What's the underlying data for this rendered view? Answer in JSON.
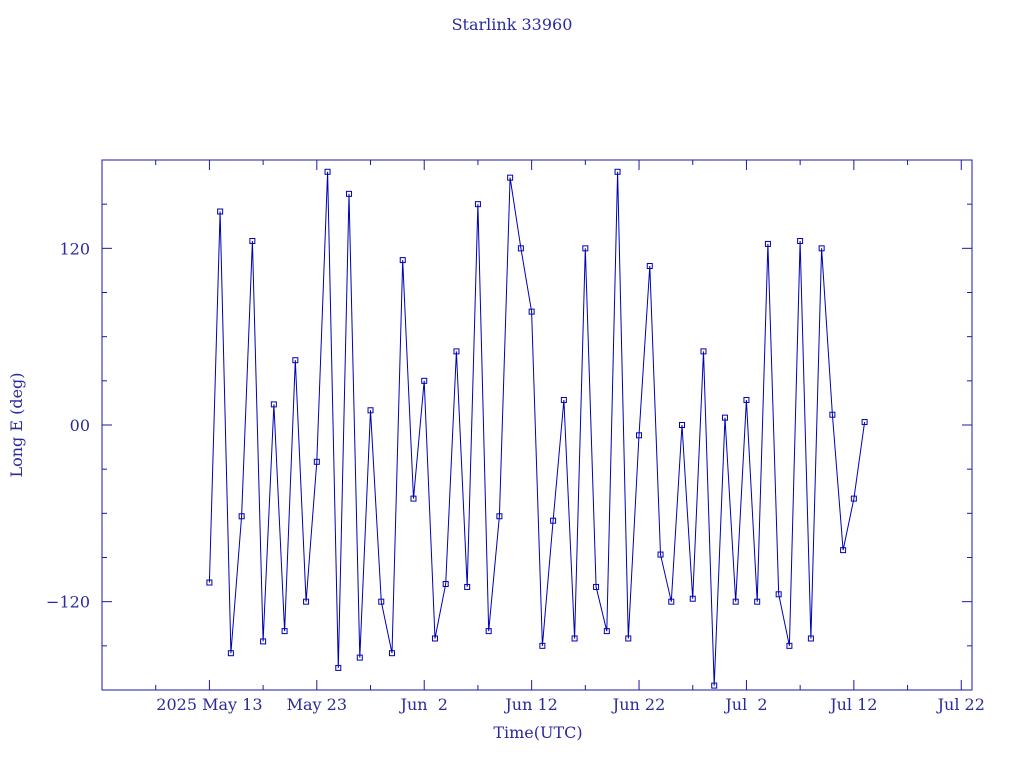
{
  "chart_data": {
    "type": "line",
    "title": "Starlink 33960",
    "x_label": "Time(UTC)",
    "y_label": "Long E (deg)",
    "color": "#0000b4",
    "markers": true,
    "xlim": [
      "2025-05-03",
      "2025-07-23"
    ],
    "xticks": [
      {
        "value": "2025-05-13",
        "label": "2025 May 13"
      },
      {
        "value": "2025-05-23",
        "label": "May 23"
      },
      {
        "value": "2025-06-02",
        "label": "Jun  2"
      },
      {
        "value": "2025-06-12",
        "label": "Jun 12"
      },
      {
        "value": "2025-06-22",
        "label": "Jun 22"
      },
      {
        "value": "2025-07-02",
        "label": "Jul  2"
      },
      {
        "value": "2025-07-12",
        "label": "Jul 12"
      },
      {
        "value": "2025-07-22",
        "label": "Jul 22"
      }
    ],
    "xminor": [
      "2025-05-08",
      "2025-05-18",
      "2025-05-28",
      "2025-06-07",
      "2025-06-17",
      "2025-06-27",
      "2025-07-07",
      "2025-07-17"
    ],
    "ylim": [
      -180,
      180
    ],
    "yticks": [
      {
        "value": -120,
        "label": "−120"
      },
      {
        "value": 0,
        "label": "00"
      },
      120
    ],
    "yminor": [
      -150,
      -90,
      -60,
      -30,
      30,
      60,
      90,
      150
    ],
    "x": [
      "2025-05-13",
      "2025-05-14",
      "2025-05-15",
      "2025-05-16",
      "2025-05-17",
      "2025-05-18",
      "2025-05-19",
      "2025-05-20",
      "2025-05-21",
      "2025-05-22",
      "2025-05-23",
      "2025-05-24",
      "2025-05-25",
      "2025-05-26",
      "2025-05-27",
      "2025-05-28",
      "2025-05-29",
      "2025-05-30",
      "2025-05-31",
      "2025-06-01",
      "2025-06-02",
      "2025-06-03",
      "2025-06-04",
      "2025-06-05",
      "2025-06-06",
      "2025-06-07",
      "2025-06-08",
      "2025-06-09",
      "2025-06-10",
      "2025-06-11",
      "2025-06-12",
      "2025-06-13",
      "2025-06-14",
      "2025-06-15",
      "2025-06-16",
      "2025-06-17",
      "2025-06-18",
      "2025-06-19",
      "2025-06-20",
      "2025-06-21",
      "2025-06-22",
      "2025-06-23",
      "2025-06-24",
      "2025-06-25",
      "2025-06-26",
      "2025-06-27",
      "2025-06-28",
      "2025-06-29",
      "2025-06-30",
      "2025-07-01",
      "2025-07-02",
      "2025-07-03",
      "2025-07-04",
      "2025-07-05",
      "2025-07-06",
      "2025-07-07",
      "2025-07-08",
      "2025-07-09",
      "2025-07-10",
      "2025-07-11",
      "2025-07-12",
      "2025-07-13"
    ],
    "values": [
      -107,
      145,
      -155,
      -62,
      125,
      -147,
      14,
      -140,
      44,
      -120,
      -25,
      172,
      -165,
      157,
      -158,
      10,
      -120,
      -155,
      112,
      -50,
      30,
      -145,
      -108,
      50,
      -110,
      150,
      -140,
      -62,
      168,
      120,
      77,
      -150,
      -65,
      17,
      -145,
      120,
      -110,
      -140,
      172,
      -145,
      -7,
      108,
      -88,
      -120,
      0,
      -118,
      50,
      -177,
      5,
      -120,
      17,
      -120,
      123,
      -115,
      -150,
      125,
      -145,
      120,
      7,
      -85,
      -50,
      2
    ]
  }
}
